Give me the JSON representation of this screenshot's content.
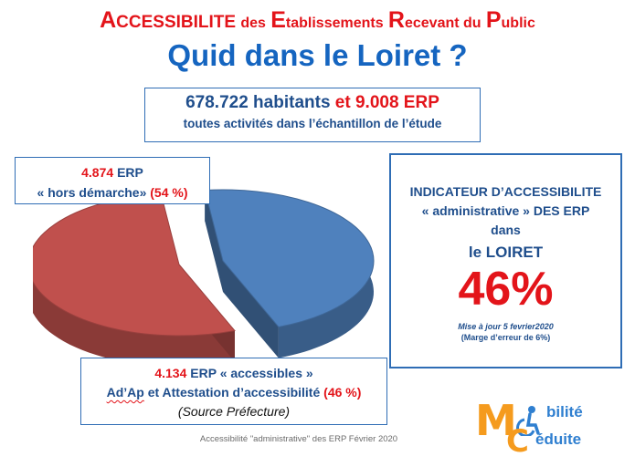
{
  "header": {
    "title_A": "A",
    "title_A_rest": "CCESSIBILITE",
    "title_des": "des",
    "title_E": "E",
    "title_E_rest": "tablissements",
    "title_R": "R",
    "title_R_rest": "ecevant du",
    "title_P": "P",
    "title_P_rest": "ublic",
    "subtitle": "Quid dans le Loiret ?"
  },
  "population": {
    "habitants": "678.722 habitants",
    "et": "et",
    "erp": "9.008 ERP",
    "note": "toutes activités dans l’échantillon de l’étude"
  },
  "hors_demarche": {
    "count": "4.874",
    "count_suffix": "ERP",
    "label": "« hors démarche»",
    "pct": "(54 %)"
  },
  "accessibles": {
    "count": "4.134",
    "count_suffix": "ERP « accessibles »",
    "adap": "Ad’Ap",
    "label_rest": "et Attestation d’accessibilité",
    "pct": "(46 %)",
    "source": "(Source Préfecture)"
  },
  "indicator": {
    "line1": "INDICATEUR D’ACCESSIBILITE",
    "line2": "« administrative » DES ERP",
    "line3": "dans",
    "line4": "le LOIRET",
    "value": "46%",
    "date": "Mise à  jour 5 fevrier2020",
    "marge": "(Marge d’erreur de 6%)"
  },
  "footer": "Accessibilité \"administrative\" des ERP Février 2020",
  "logo": {
    "letter_m": "M",
    "letter_c": "C",
    "word1": "bilité",
    "word2": "éduite"
  },
  "colors": {
    "red": "#e3141a",
    "blue": "#1565c0",
    "pie_red": "#c0504d",
    "pie_blue": "#4f81bd"
  },
  "chart_data": {
    "type": "pie",
    "categories": [
      "hors démarche",
      "accessibles"
    ],
    "values": [
      4874,
      4134
    ],
    "percent": [
      54,
      46
    ],
    "colors": [
      "#c0504d",
      "#4f81bd"
    ]
  }
}
